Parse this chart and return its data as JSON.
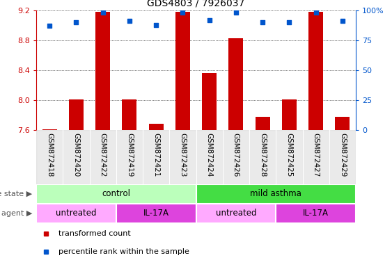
{
  "title": "GDS4803 / 7926037",
  "samples": [
    "GSM872418",
    "GSM872420",
    "GSM872422",
    "GSM872419",
    "GSM872421",
    "GSM872423",
    "GSM872424",
    "GSM872426",
    "GSM872428",
    "GSM872425",
    "GSM872427",
    "GSM872429"
  ],
  "transformed_count": [
    7.61,
    8.01,
    9.18,
    8.01,
    7.68,
    9.18,
    8.36,
    8.83,
    7.78,
    8.01,
    9.18,
    7.78
  ],
  "percentile_rank": [
    87,
    90,
    98,
    91,
    88,
    98,
    92,
    98,
    90,
    90,
    98,
    91
  ],
  "ylim_left": [
    7.6,
    9.2
  ],
  "ylim_right": [
    0,
    100
  ],
  "yticks_left": [
    7.6,
    8.0,
    8.4,
    8.8,
    9.2
  ],
  "yticks_right": [
    0,
    25,
    50,
    75,
    100
  ],
  "bar_color": "#cc0000",
  "dot_color": "#0055cc",
  "bar_baseline": 7.6,
  "disease_state_groups": [
    {
      "label": "control",
      "start": 0,
      "end": 6,
      "color": "#bbffbb"
    },
    {
      "label": "mild asthma",
      "start": 6,
      "end": 12,
      "color": "#44dd44"
    }
  ],
  "agent_groups": [
    {
      "label": "untreated",
      "start": 0,
      "end": 3,
      "color": "#ffaaff"
    },
    {
      "label": "IL-17A",
      "start": 3,
      "end": 6,
      "color": "#dd44dd"
    },
    {
      "label": "untreated",
      "start": 6,
      "end": 9,
      "color": "#ffaaff"
    },
    {
      "label": "IL-17A",
      "start": 9,
      "end": 12,
      "color": "#dd44dd"
    }
  ],
  "left_axis_color": "#cc0000",
  "right_axis_color": "#0055cc",
  "legend_items": [
    {
      "label": "transformed count",
      "color": "#cc0000"
    },
    {
      "label": "percentile rank within the sample",
      "color": "#0055cc"
    }
  ],
  "tick_label_fontsize": 7.5,
  "title_fontsize": 10
}
